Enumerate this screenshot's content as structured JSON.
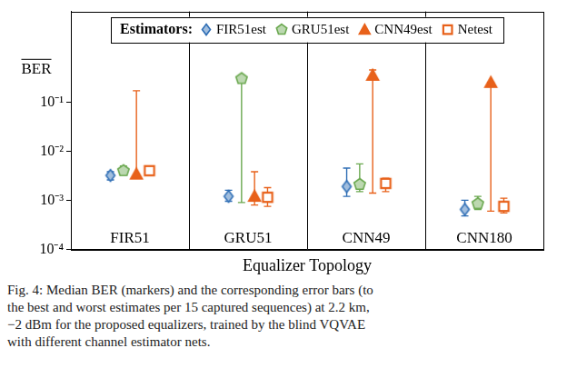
{
  "chart_data": {
    "type": "scatter",
    "y_label": "BER",
    "x_label": "Equalizer Topology",
    "legend_title": "Estimators:",
    "caption": [
      "Fig. 4: Median BER (markers) and the corresponding error bars (to",
      "the best and worst estimates per 15 captured sequences) at 2.2 km,",
      "−2 dBm for the proposed equalizers, trained by the blind VQVAE",
      "with different channel estimator nets."
    ],
    "categories": [
      "FIR51",
      "GRU51",
      "CNN49",
      "CNN180"
    ],
    "series": [
      {
        "name": "FIR51est",
        "color": "#2f6eb5",
        "marker": "diamond",
        "values": [
          0.0032,
          0.0012,
          0.0019,
          0.00065
        ],
        "low": [
          0.0026,
          0.00095,
          0.0012,
          0.00048
        ],
        "high": [
          0.0038,
          0.0016,
          0.0045,
          0.001
        ]
      },
      {
        "name": "GRU51est",
        "color": "#6aa84f",
        "marker": "pentagon",
        "values": [
          0.004,
          0.3,
          0.0021,
          0.00085
        ],
        "low": [
          0.0034,
          0.0009,
          0.0015,
          0.00065
        ],
        "high": [
          0.005,
          0.3,
          0.0055,
          0.0012
        ]
      },
      {
        "name": "CNN49est",
        "color": "#e8611a",
        "marker": "triangle",
        "values": [
          0.0034,
          0.0012,
          0.35,
          0.25
        ],
        "low": [
          0.003,
          0.0008,
          0.0014,
          0.0006
        ],
        "high": [
          0.17,
          0.0038,
          0.45,
          0.25
        ]
      },
      {
        "name": "Netest",
        "color": "#e8611a",
        "marker": "square",
        "values": [
          0.004,
          0.00115,
          0.0022,
          0.00075
        ],
        "low": [
          0.0034,
          0.00075,
          0.0015,
          0.00055
        ],
        "high": [
          0.0046,
          0.0018,
          0.0028,
          0.0011
        ]
      }
    ],
    "ylim": [
      0.0001,
      7
    ],
    "yticks": [
      {
        "value": 0.0001,
        "label": "10⁻⁴"
      },
      {
        "value": 0.001,
        "label": "10⁻³"
      },
      {
        "value": 0.01,
        "label": "10⁻²"
      },
      {
        "value": 0.1,
        "label": "10⁻¹"
      }
    ],
    "log": "y",
    "grid": false,
    "legend": "top"
  }
}
